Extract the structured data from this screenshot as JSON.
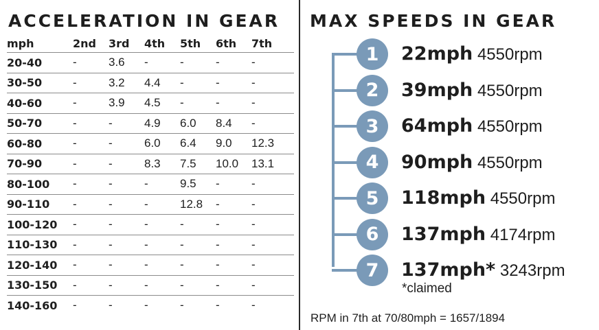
{
  "acceleration": {
    "title": "ACCELERATION IN GEAR",
    "headers": [
      "mph",
      "2nd",
      "3rd",
      "4th",
      "5th",
      "6th",
      "7th"
    ],
    "rows": [
      [
        "20-40",
        "-",
        "3.6",
        "-",
        "-",
        "-",
        "-"
      ],
      [
        "30-50",
        "-",
        "3.2",
        "4.4",
        "-",
        "-",
        "-"
      ],
      [
        "40-60",
        "-",
        "3.9",
        "4.5",
        "-",
        "-",
        "-"
      ],
      [
        "50-70",
        "-",
        "-",
        "4.9",
        "6.0",
        "8.4",
        "-"
      ],
      [
        "60-80",
        "-",
        "-",
        "6.0",
        "6.4",
        "9.0",
        "12.3"
      ],
      [
        "70-90",
        "-",
        "-",
        "8.3",
        "7.5",
        "10.0",
        "13.1"
      ],
      [
        "80-100",
        "-",
        "-",
        "-",
        "9.5",
        "-",
        "-"
      ],
      [
        "90-110",
        "-",
        "-",
        "-",
        "12.8",
        "-",
        "-"
      ],
      [
        "100-120",
        "-",
        "-",
        "-",
        "-",
        "-",
        "-"
      ],
      [
        "110-130",
        "-",
        "-",
        "-",
        "-",
        "-",
        "-"
      ],
      [
        "120-140",
        "-",
        "-",
        "-",
        "-",
        "-",
        "-"
      ],
      [
        "130-150",
        "-",
        "-",
        "-",
        "-",
        "-",
        "-"
      ],
      [
        "140-160",
        "-",
        "-",
        "-",
        "-",
        "-",
        "-"
      ]
    ]
  },
  "max_speeds": {
    "title": "MAX SPEEDS IN GEAR",
    "gears": [
      {
        "gear": "1",
        "speed": "22mph",
        "rpm": "4550rpm"
      },
      {
        "gear": "2",
        "speed": "39mph",
        "rpm": "4550rpm"
      },
      {
        "gear": "3",
        "speed": "64mph",
        "rpm": "4550rpm"
      },
      {
        "gear": "4",
        "speed": "90mph",
        "rpm": "4550rpm"
      },
      {
        "gear": "5",
        "speed": "118mph",
        "rpm": "4550rpm"
      },
      {
        "gear": "6",
        "speed": "137mph",
        "rpm": "4174rpm"
      },
      {
        "gear": "7",
        "speed": "137mph*",
        "rpm": "3243rpm"
      }
    ],
    "claimed_note": "*claimed",
    "footnote": "RPM in 7th at 70/80mph = 1657/1894"
  },
  "colors": {
    "ladder": "#7a9ab8",
    "text": "#1e1e1e"
  }
}
